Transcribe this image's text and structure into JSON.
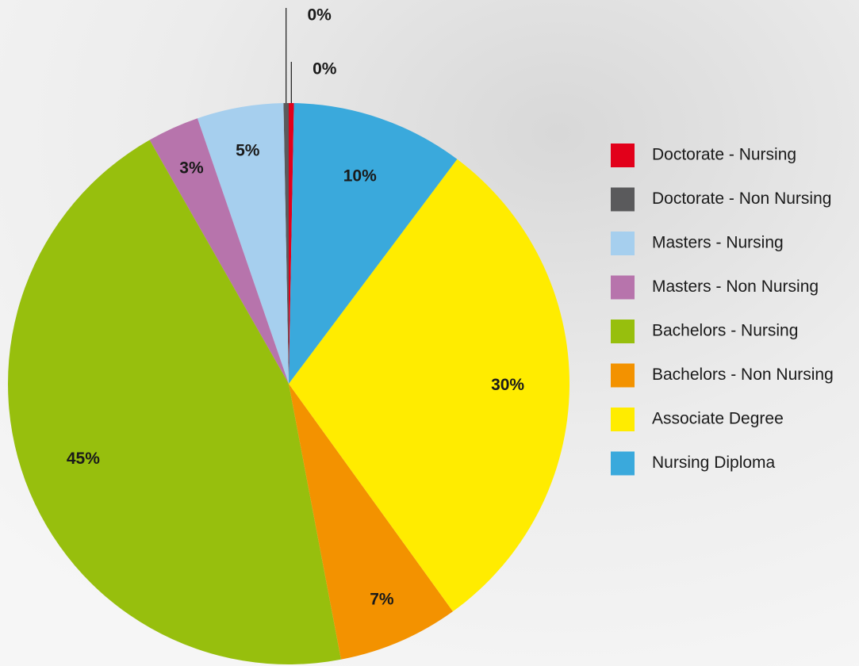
{
  "chart_data": {
    "type": "pie",
    "categories": [
      "Doctorate - Nursing",
      "Doctorate - Non Nursing",
      "Masters - Nursing",
      "Masters - Non Nursing",
      "Bachelors - Nursing",
      "Bachelors - Non Nursing",
      "Associate Degree",
      "Nursing Diploma"
    ],
    "values": [
      0.3,
      0.3,
      5,
      3,
      45,
      7,
      30,
      10
    ],
    "value_labels": [
      "0%",
      "0%",
      "5%",
      "3%",
      "45%",
      "7%",
      "30%",
      "10%"
    ],
    "colors": [
      "#e2001a",
      "#5a5a5c",
      "#a6cfee",
      "#b774ac",
      "#97bf0d",
      "#f39200",
      "#ffec00",
      "#3aa9dc"
    ],
    "legend": "right"
  }
}
